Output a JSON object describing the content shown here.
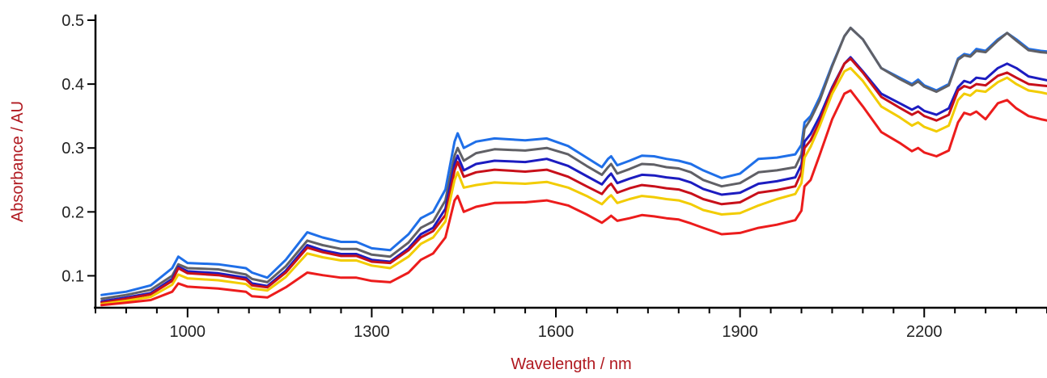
{
  "chart_data": {
    "type": "line",
    "xlabel": "Wavelength / nm",
    "ylabel": "Absorbance / AU",
    "xlim": [
      850,
      2400
    ],
    "ylim": [
      0.05,
      0.5
    ],
    "x_ticks": [
      1000,
      1300,
      1600,
      1900,
      2200
    ],
    "y_ticks": [
      0.1,
      0.2,
      0.3,
      0.4,
      0.5
    ],
    "x_minor_step": 50,
    "grid": false,
    "legend": "none",
    "x": [
      860,
      900,
      940,
      975,
      985,
      1000,
      1050,
      1095,
      1105,
      1130,
      1160,
      1195,
      1220,
      1250,
      1275,
      1300,
      1330,
      1360,
      1380,
      1400,
      1420,
      1435,
      1440,
      1450,
      1470,
      1500,
      1550,
      1585,
      1620,
      1650,
      1675,
      1685,
      1690,
      1700,
      1720,
      1740,
      1760,
      1780,
      1800,
      1820,
      1840,
      1870,
      1900,
      1930,
      1960,
      1990,
      2000,
      2005,
      2015,
      2030,
      2050,
      2070,
      2080,
      2100,
      2130,
      2160,
      2180,
      2190,
      2200,
      2220,
      2240,
      2255,
      2265,
      2275,
      2285,
      2300,
      2320,
      2335,
      2350,
      2370,
      2390,
      2400
    ],
    "series": [
      {
        "color": "#1f6fe8",
        "values": [
          0.07,
          0.075,
          0.085,
          0.112,
          0.13,
          0.12,
          0.118,
          0.112,
          0.105,
          0.097,
          0.125,
          0.168,
          0.16,
          0.153,
          0.153,
          0.143,
          0.14,
          0.165,
          0.19,
          0.2,
          0.235,
          0.31,
          0.323,
          0.3,
          0.31,
          0.315,
          0.312,
          0.315,
          0.303,
          0.285,
          0.27,
          0.283,
          0.287,
          0.273,
          0.28,
          0.288,
          0.287,
          0.283,
          0.28,
          0.275,
          0.265,
          0.253,
          0.26,
          0.283,
          0.285,
          0.29,
          0.305,
          0.34,
          0.35,
          0.38,
          0.43,
          0.475,
          0.488,
          0.47,
          0.425,
          0.41,
          0.4,
          0.407,
          0.398,
          0.39,
          0.4,
          0.44,
          0.447,
          0.445,
          0.455,
          0.452,
          0.47,
          0.48,
          0.47,
          0.455,
          0.452,
          0.451
        ]
      },
      {
        "color": "#606066",
        "values": [
          0.064,
          0.07,
          0.078,
          0.1,
          0.118,
          0.112,
          0.11,
          0.102,
          0.095,
          0.09,
          0.115,
          0.155,
          0.148,
          0.142,
          0.142,
          0.133,
          0.13,
          0.152,
          0.175,
          0.185,
          0.218,
          0.288,
          0.3,
          0.28,
          0.292,
          0.298,
          0.296,
          0.3,
          0.29,
          0.272,
          0.258,
          0.27,
          0.275,
          0.26,
          0.267,
          0.275,
          0.274,
          0.27,
          0.268,
          0.262,
          0.25,
          0.24,
          0.245,
          0.262,
          0.265,
          0.27,
          0.29,
          0.33,
          0.345,
          0.375,
          0.428,
          0.475,
          0.488,
          0.47,
          0.425,
          0.408,
          0.398,
          0.404,
          0.396,
          0.388,
          0.398,
          0.438,
          0.445,
          0.443,
          0.452,
          0.45,
          0.468,
          0.48,
          0.468,
          0.453,
          0.45,
          0.449
        ]
      },
      {
        "color": "#1c1cc0",
        "values": [
          0.06,
          0.066,
          0.073,
          0.095,
          0.114,
          0.107,
          0.104,
          0.097,
          0.088,
          0.084,
          0.108,
          0.148,
          0.14,
          0.134,
          0.134,
          0.125,
          0.122,
          0.143,
          0.165,
          0.175,
          0.205,
          0.275,
          0.288,
          0.265,
          0.275,
          0.28,
          0.278,
          0.283,
          0.272,
          0.256,
          0.243,
          0.255,
          0.26,
          0.245,
          0.252,
          0.258,
          0.257,
          0.254,
          0.252,
          0.246,
          0.236,
          0.227,
          0.23,
          0.244,
          0.248,
          0.254,
          0.274,
          0.31,
          0.322,
          0.35,
          0.395,
          0.432,
          0.442,
          0.42,
          0.385,
          0.37,
          0.36,
          0.365,
          0.358,
          0.352,
          0.362,
          0.395,
          0.405,
          0.402,
          0.41,
          0.408,
          0.425,
          0.432,
          0.425,
          0.412,
          0.408,
          0.406
        ]
      },
      {
        "color": "#c8101a",
        "values": [
          0.058,
          0.064,
          0.071,
          0.092,
          0.112,
          0.104,
          0.101,
          0.094,
          0.085,
          0.082,
          0.105,
          0.144,
          0.137,
          0.131,
          0.131,
          0.122,
          0.12,
          0.14,
          0.16,
          0.17,
          0.195,
          0.265,
          0.278,
          0.255,
          0.262,
          0.266,
          0.263,
          0.266,
          0.255,
          0.24,
          0.228,
          0.24,
          0.244,
          0.23,
          0.237,
          0.242,
          0.24,
          0.237,
          0.235,
          0.229,
          0.22,
          0.212,
          0.215,
          0.23,
          0.234,
          0.24,
          0.262,
          0.3,
          0.312,
          0.342,
          0.392,
          0.432,
          0.44,
          0.418,
          0.38,
          0.363,
          0.352,
          0.357,
          0.35,
          0.343,
          0.352,
          0.39,
          0.397,
          0.394,
          0.4,
          0.398,
          0.413,
          0.418,
          0.41,
          0.4,
          0.398,
          0.397
        ]
      },
      {
        "color": "#f2cc00",
        "values": [
          0.056,
          0.061,
          0.067,
          0.086,
          0.102,
          0.096,
          0.093,
          0.087,
          0.08,
          0.077,
          0.098,
          0.135,
          0.129,
          0.124,
          0.124,
          0.116,
          0.112,
          0.13,
          0.15,
          0.16,
          0.185,
          0.25,
          0.262,
          0.238,
          0.242,
          0.246,
          0.244,
          0.247,
          0.238,
          0.225,
          0.212,
          0.222,
          0.226,
          0.214,
          0.22,
          0.225,
          0.223,
          0.22,
          0.218,
          0.212,
          0.203,
          0.196,
          0.198,
          0.21,
          0.22,
          0.228,
          0.245,
          0.285,
          0.302,
          0.335,
          0.385,
          0.42,
          0.425,
          0.405,
          0.365,
          0.348,
          0.335,
          0.34,
          0.333,
          0.326,
          0.335,
          0.375,
          0.385,
          0.382,
          0.39,
          0.388,
          0.403,
          0.41,
          0.4,
          0.39,
          0.387,
          0.385
        ]
      },
      {
        "color": "#ec1c1c",
        "values": [
          0.054,
          0.058,
          0.062,
          0.075,
          0.088,
          0.083,
          0.08,
          0.075,
          0.068,
          0.066,
          0.082,
          0.105,
          0.101,
          0.097,
          0.097,
          0.092,
          0.09,
          0.105,
          0.125,
          0.135,
          0.16,
          0.218,
          0.225,
          0.2,
          0.208,
          0.214,
          0.215,
          0.218,
          0.21,
          0.196,
          0.183,
          0.19,
          0.194,
          0.186,
          0.19,
          0.195,
          0.193,
          0.19,
          0.188,
          0.182,
          0.175,
          0.165,
          0.167,
          0.175,
          0.18,
          0.187,
          0.202,
          0.24,
          0.25,
          0.29,
          0.345,
          0.385,
          0.39,
          0.365,
          0.325,
          0.308,
          0.295,
          0.3,
          0.293,
          0.287,
          0.296,
          0.34,
          0.355,
          0.352,
          0.357,
          0.345,
          0.37,
          0.375,
          0.362,
          0.35,
          0.345,
          0.343
        ]
      }
    ]
  }
}
